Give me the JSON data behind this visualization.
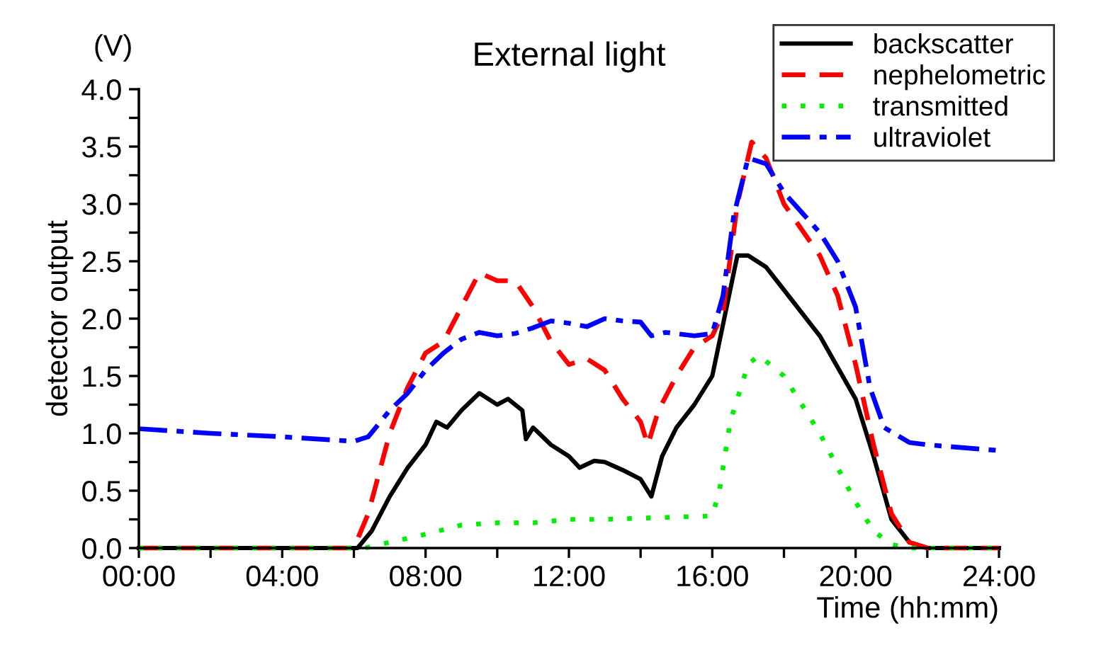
{
  "chart_data": {
    "type": "line",
    "title": "External light",
    "xlabel": "Time (hh:mm)",
    "ylabel": "detector output",
    "annotations": [
      "(V)"
    ],
    "xlim": [
      0,
      24
    ],
    "ylim": [
      0,
      4
    ],
    "xticks": [
      {
        "value": 0,
        "label": "00:00"
      },
      {
        "value": 2,
        "label": null
      },
      {
        "value": 4,
        "label": "04:00"
      },
      {
        "value": 6,
        "label": null
      },
      {
        "value": 8,
        "label": "08:00"
      },
      {
        "value": 10,
        "label": null
      },
      {
        "value": 12,
        "label": "12:00"
      },
      {
        "value": 14,
        "label": null
      },
      {
        "value": 16,
        "label": "16:00"
      },
      {
        "value": 18,
        "label": null
      },
      {
        "value": 20,
        "label": "20:00"
      },
      {
        "value": 22,
        "label": null
      },
      {
        "value": 24,
        "label": "24:00"
      }
    ],
    "yticks": [
      {
        "value": 0,
        "label": "0.0"
      },
      {
        "value": 0.25,
        "label": null
      },
      {
        "value": 0.5,
        "label": "0.5"
      },
      {
        "value": 0.75,
        "label": null
      },
      {
        "value": 1,
        "label": "1.0"
      },
      {
        "value": 1.25,
        "label": null
      },
      {
        "value": 1.5,
        "label": "1.5"
      },
      {
        "value": 1.75,
        "label": null
      },
      {
        "value": 2,
        "label": "2.0"
      },
      {
        "value": 2.25,
        "label": null
      },
      {
        "value": 2.5,
        "label": "2.5"
      },
      {
        "value": 2.75,
        "label": null
      },
      {
        "value": 3,
        "label": "3.0"
      },
      {
        "value": 3.25,
        "label": null
      },
      {
        "value": 3.5,
        "label": "3.5"
      },
      {
        "value": 3.75,
        "label": null
      },
      {
        "value": 4,
        "label": "4.0"
      }
    ],
    "grid": false,
    "legend": "top right",
    "series": [
      {
        "name": "backscatter",
        "color": "#000000",
        "line_style": "solid",
        "x": [
          0,
          6.1,
          6.5,
          7,
          7.5,
          8,
          8.3,
          8.6,
          9,
          9.5,
          10,
          10.3,
          10.7,
          10.8,
          11,
          11.5,
          12,
          12.3,
          12.7,
          13,
          13.5,
          14,
          14.3,
          14.6,
          15,
          15.5,
          16,
          16.4,
          16.7,
          17,
          17.5,
          18,
          19,
          20,
          20.5,
          21,
          21.5,
          22,
          24
        ],
        "values": [
          0,
          0,
          0.15,
          0.45,
          0.7,
          0.9,
          1.1,
          1.05,
          1.2,
          1.35,
          1.25,
          1.3,
          1.2,
          0.95,
          1.05,
          0.9,
          0.8,
          0.7,
          0.76,
          0.75,
          0.68,
          0.6,
          0.45,
          0.8,
          1.05,
          1.25,
          1.5,
          2.1,
          2.55,
          2.55,
          2.45,
          2.25,
          1.85,
          1.3,
          0.8,
          0.25,
          0.05,
          0,
          0
        ]
      },
      {
        "name": "nephelometric",
        "color": "#ff0000",
        "line_style": "dashed",
        "x": [
          0,
          6,
          6.4,
          7,
          7.5,
          8,
          8.5,
          9,
          9.5,
          10,
          10.5,
          11,
          11.5,
          12,
          12.5,
          13,
          13.5,
          14,
          14.2,
          14.5,
          15,
          15.5,
          16,
          16.3,
          16.7,
          17.1,
          17.5,
          18,
          19,
          19.5,
          20,
          20.5,
          21,
          21.5,
          22,
          24
        ],
        "values": [
          0,
          0,
          0.3,
          1.0,
          1.4,
          1.7,
          1.8,
          2.1,
          2.4,
          2.33,
          2.33,
          2.1,
          1.8,
          1.6,
          1.65,
          1.55,
          1.3,
          1.1,
          0.9,
          1.2,
          1.5,
          1.75,
          1.85,
          2.05,
          3.0,
          3.54,
          3.4,
          3.0,
          2.55,
          2.2,
          1.6,
          0.9,
          0.3,
          0.05,
          0,
          0
        ]
      },
      {
        "name": "transmitted",
        "color": "#00ee00",
        "line_style": "dotted",
        "x": [
          0,
          6.3,
          7,
          8,
          9,
          10,
          11,
          12,
          13,
          14,
          15,
          16,
          16.2,
          16.5,
          17,
          17.3,
          18,
          19,
          19.5,
          20,
          20.5,
          21,
          21.5,
          24
        ],
        "values": [
          0,
          0,
          0.05,
          0.12,
          0.2,
          0.22,
          0.22,
          0.25,
          0.25,
          0.26,
          0.27,
          0.28,
          0.5,
          1.1,
          1.6,
          1.68,
          1.5,
          1.0,
          0.7,
          0.4,
          0.15,
          0.03,
          0,
          0
        ]
      },
      {
        "name": "ultraviolet",
        "color": "#0000ff",
        "line_style": "dashdot",
        "x": [
          0,
          2,
          4,
          6,
          6.4,
          7,
          7.5,
          8,
          8.5,
          9,
          9.5,
          10,
          10.5,
          11,
          11.5,
          12,
          12.5,
          13,
          13.5,
          14,
          14.3,
          14.7,
          15.5,
          16,
          16.3,
          16.6,
          17,
          17.5,
          18,
          19,
          19.5,
          20,
          20.4,
          20.8,
          21.5,
          22,
          24
        ],
        "values": [
          1.04,
          1.0,
          0.97,
          0.93,
          0.97,
          1.2,
          1.35,
          1.55,
          1.7,
          1.82,
          1.88,
          1.85,
          1.87,
          1.92,
          1.98,
          1.96,
          1.93,
          2.0,
          1.98,
          1.97,
          1.85,
          1.88,
          1.85,
          1.87,
          2.2,
          2.9,
          3.4,
          3.35,
          3.1,
          2.75,
          2.5,
          2.1,
          1.4,
          1.05,
          0.92,
          0.9,
          0.85
        ]
      }
    ]
  }
}
